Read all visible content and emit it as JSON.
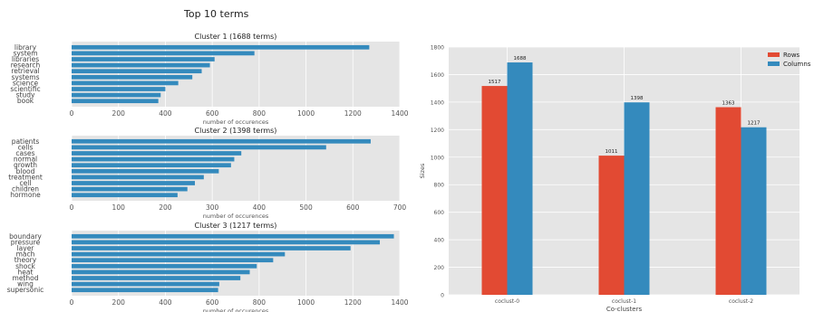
{
  "figure": {
    "title": "Top 10 terms"
  },
  "chart_data": [
    {
      "type": "bar",
      "orientation": "horizontal",
      "title": "Cluster 1 (1688 terms)",
      "xlabel": "number of occurences",
      "categories": [
        "library",
        "system",
        "libraries",
        "research",
        "retrieval",
        "systems",
        "science",
        "scientific",
        "study",
        "book"
      ],
      "values": [
        1270,
        780,
        610,
        590,
        555,
        515,
        455,
        400,
        380,
        370
      ],
      "xlim": [
        0,
        1400
      ],
      "xticks": [
        0,
        200,
        400,
        600,
        800,
        1000,
        1200,
        1400
      ],
      "grid": true,
      "color": "#348abd"
    },
    {
      "type": "bar",
      "orientation": "horizontal",
      "title": "Cluster 2 (1398 terms)",
      "xlabel": "number of occurences",
      "categories": [
        "patients",
        "cells",
        "cases",
        "normal",
        "growth",
        "blood",
        "treatment",
        "cell",
        "children",
        "hormone"
      ],
      "values": [
        638,
        543,
        362,
        347,
        340,
        314,
        282,
        263,
        247,
        226
      ],
      "xlim": [
        0,
        700
      ],
      "xticks": [
        0,
        100,
        200,
        300,
        400,
        500,
        600,
        700
      ],
      "grid": true,
      "color": "#348abd"
    },
    {
      "type": "bar",
      "orientation": "horizontal",
      "title": "Cluster 3 (1217 terms)",
      "xlabel": "number of occurences",
      "categories": [
        "boundary",
        "pressure",
        "layer",
        "mach",
        "theory",
        "shock",
        "heat",
        "method",
        "wing",
        "supersonic"
      ],
      "values": [
        1375,
        1315,
        1190,
        910,
        860,
        790,
        760,
        720,
        630,
        625
      ],
      "xlim": [
        0,
        1400
      ],
      "xticks": [
        0,
        200,
        400,
        600,
        800,
        1000,
        1200,
        1400
      ],
      "grid": true,
      "color": "#348abd"
    },
    {
      "type": "bar",
      "orientation": "vertical",
      "title": "",
      "xlabel": "Co-clusters",
      "ylabel": "Sizes",
      "categories": [
        "coclust-0",
        "coclust-1",
        "coclust-2"
      ],
      "series": [
        {
          "name": "Rows",
          "values": [
            1517,
            1011,
            1363
          ],
          "color": "#e24a33"
        },
        {
          "name": "Columns",
          "values": [
            1688,
            1398,
            1217
          ],
          "color": "#348abd"
        }
      ],
      "ylim": [
        0,
        1800
      ],
      "yticks": [
        0,
        200,
        400,
        600,
        800,
        1000,
        1200,
        1400,
        1600,
        1800
      ],
      "grid": true,
      "legend": "top-right"
    }
  ]
}
